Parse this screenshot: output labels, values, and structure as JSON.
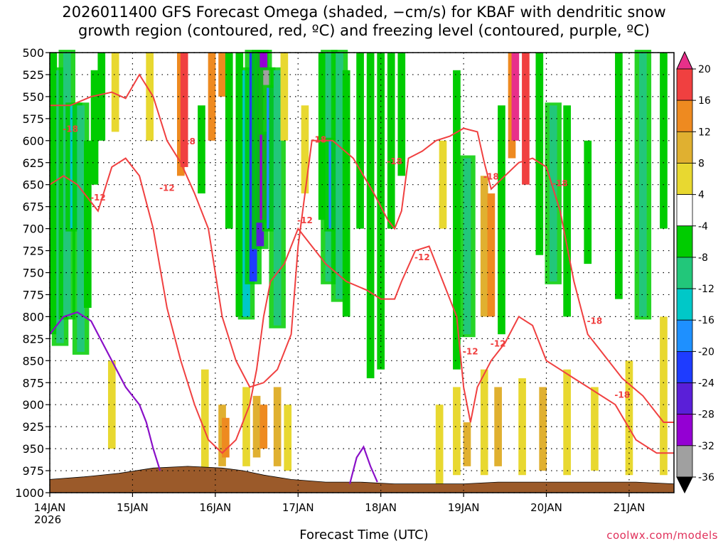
{
  "title": {
    "line1": "2026011400 GFS Forecast Omega (shaded, −cm/s) for KBAF with dendritic snow",
    "line2": "growth region (contoured, red, ºC) and freezing level (contoured, purple, ºC)"
  },
  "footer": {
    "xlabel": "Forecast Time (UTC)",
    "credit": "coolwx.com/models",
    "year": "2026"
  },
  "chart_data": {
    "type": "heatmap",
    "title": "2026011400 GFS Forecast Omega for KBAF",
    "xlabel": "Forecast Time (UTC)",
    "ylabel": "Pressure (hPa)",
    "xlim_hours": [
      0,
      181
    ],
    "ylim": [
      1000,
      500
    ],
    "y_ticks": [
      500,
      525,
      550,
      575,
      600,
      625,
      650,
      675,
      700,
      725,
      750,
      775,
      800,
      825,
      850,
      875,
      900,
      925,
      950,
      975,
      1000
    ],
    "x_ticks": [
      {
        "label": "14JAN",
        "hour": 0
      },
      {
        "label": "15JAN",
        "hour": 24
      },
      {
        "label": "16JAN",
        "hour": 48
      },
      {
        "label": "17JAN",
        "hour": 72
      },
      {
        "label": "18JAN",
        "hour": 96
      },
      {
        "label": "19JAN",
        "hour": 120
      },
      {
        "label": "20JAN",
        "hour": 144
      },
      {
        "label": "21JAN",
        "hour": 168
      }
    ],
    "colorbar": {
      "levels": [
        -36,
        -32,
        -28,
        -24,
        -20,
        -16,
        -12,
        -8,
        -4,
        4,
        8,
        12,
        16,
        20
      ],
      "labels": [
        "20",
        "16",
        "12",
        "8",
        "4",
        "-4",
        "-8",
        "-12",
        "-16",
        "-20",
        "-24",
        "-28",
        "-32",
        "-36"
      ],
      "colors": [
        "#000000",
        "#a0a0a0",
        "#9400d3",
        "#5a1fd8",
        "#1e3cff",
        "#1e90ff",
        "#00c8c8",
        "#22c77a",
        "#00cc00",
        "#ffffff",
        "#e8d830",
        "#e0b030",
        "#ee8a20",
        "#f04040",
        "#e8308a"
      ]
    },
    "omega_columns": [
      {
        "hour": 1,
        "top": 500,
        "bottom": 820,
        "value": -8
      },
      {
        "hour": 3,
        "top": 520,
        "bottom": 830,
        "value": -12
      },
      {
        "hour": 5,
        "top": 500,
        "bottom": 800,
        "value": -12
      },
      {
        "hour": 7,
        "top": 560,
        "bottom": 700,
        "value": -16
      },
      {
        "hour": 9,
        "top": 560,
        "bottom": 840,
        "value": -12
      },
      {
        "hour": 11,
        "top": 600,
        "bottom": 790,
        "value": -8
      },
      {
        "hour": 13,
        "top": 520,
        "bottom": 650,
        "value": -8
      },
      {
        "hour": 15,
        "top": 500,
        "bottom": 600,
        "value": -8
      },
      {
        "hour": 19,
        "top": 500,
        "bottom": 590,
        "value": 4
      },
      {
        "hour": 29,
        "top": 500,
        "bottom": 600,
        "value": 4
      },
      {
        "hour": 38,
        "top": 500,
        "bottom": 640,
        "value": 12
      },
      {
        "hour": 39,
        "top": 500,
        "bottom": 630,
        "value": 16
      },
      {
        "hour": 44,
        "top": 560,
        "bottom": 660,
        "value": -8
      },
      {
        "hour": 47,
        "top": 500,
        "bottom": 600,
        "value": 12
      },
      {
        "hour": 50,
        "top": 500,
        "bottom": 550,
        "value": 12
      },
      {
        "hour": 52,
        "top": 500,
        "bottom": 700,
        "value": -8
      },
      {
        "hour": 55,
        "top": 500,
        "bottom": 800,
        "value": -8
      },
      {
        "hour": 57,
        "top": 520,
        "bottom": 800,
        "value": -16
      },
      {
        "hour": 59,
        "top": 500,
        "bottom": 760,
        "value": -24
      },
      {
        "hour": 61,
        "top": 500,
        "bottom": 720,
        "value": -28
      },
      {
        "hour": 62,
        "top": 500,
        "bottom": 690,
        "value": -32
      },
      {
        "hour": 63,
        "top": 520,
        "bottom": 590,
        "value": -36
      },
      {
        "hour": 64,
        "top": 540,
        "bottom": 700,
        "value": -20
      },
      {
        "hour": 66,
        "top": 520,
        "bottom": 810,
        "value": -12
      },
      {
        "hour": 68,
        "top": 500,
        "bottom": 600,
        "value": 4
      },
      {
        "hour": 74,
        "top": 560,
        "bottom": 660,
        "value": 4
      },
      {
        "hour": 79,
        "top": 500,
        "bottom": 690,
        "value": -8
      },
      {
        "hour": 81,
        "top": 500,
        "bottom": 760,
        "value": -12
      },
      {
        "hour": 82,
        "top": 600,
        "bottom": 700,
        "value": -20
      },
      {
        "hour": 84,
        "top": 500,
        "bottom": 780,
        "value": -12
      },
      {
        "hour": 86,
        "top": 520,
        "bottom": 800,
        "value": -8
      },
      {
        "hour": 90,
        "top": 500,
        "bottom": 700,
        "value": -8
      },
      {
        "hour": 93,
        "top": 500,
        "bottom": 870,
        "value": -8
      },
      {
        "hour": 96,
        "top": 500,
        "bottom": 860,
        "value": -8
      },
      {
        "hour": 99,
        "top": 500,
        "bottom": 700,
        "value": -8
      },
      {
        "hour": 102,
        "top": 500,
        "bottom": 640,
        "value": -8
      },
      {
        "hour": 105,
        "top": 500,
        "bottom": 600,
        "value": -4
      },
      {
        "hour": 114,
        "top": 600,
        "bottom": 700,
        "value": 4
      },
      {
        "hour": 118,
        "top": 520,
        "bottom": 860,
        "value": -8
      },
      {
        "hour": 121,
        "top": 620,
        "bottom": 820,
        "value": -12
      },
      {
        "hour": 126,
        "top": 640,
        "bottom": 800,
        "value": 8
      },
      {
        "hour": 128,
        "top": 660,
        "bottom": 800,
        "value": 12
      },
      {
        "hour": 131,
        "top": 560,
        "bottom": 820,
        "value": -8
      },
      {
        "hour": 134,
        "top": 500,
        "bottom": 620,
        "value": 12
      },
      {
        "hour": 135,
        "top": 500,
        "bottom": 600,
        "value": 20
      },
      {
        "hour": 138,
        "top": 500,
        "bottom": 650,
        "value": 16
      },
      {
        "hour": 142,
        "top": 500,
        "bottom": 730,
        "value": -8
      },
      {
        "hour": 146,
        "top": 560,
        "bottom": 760,
        "value": -12
      },
      {
        "hour": 150,
        "top": 560,
        "bottom": 800,
        "value": -8
      },
      {
        "hour": 156,
        "top": 600,
        "bottom": 740,
        "value": -8
      },
      {
        "hour": 165,
        "top": 500,
        "bottom": 780,
        "value": -8
      },
      {
        "hour": 172,
        "top": 500,
        "bottom": 800,
        "value": -12
      },
      {
        "hour": 178,
        "top": 500,
        "bottom": 700,
        "value": -8
      }
    ],
    "positive_low_level": [
      {
        "hour": 18,
        "top": 850,
        "bottom": 950,
        "value": 4
      },
      {
        "hour": 45,
        "top": 860,
        "bottom": 975,
        "value": 4
      },
      {
        "hour": 50,
        "top": 900,
        "bottom": 970,
        "value": 8
      },
      {
        "hour": 51,
        "top": 915,
        "bottom": 960,
        "value": 12
      },
      {
        "hour": 57,
        "top": 880,
        "bottom": 970,
        "value": 4
      },
      {
        "hour": 60,
        "top": 890,
        "bottom": 960,
        "value": 8
      },
      {
        "hour": 62,
        "top": 900,
        "bottom": 950,
        "value": 12
      },
      {
        "hour": 66,
        "top": 880,
        "bottom": 970,
        "value": 8
      },
      {
        "hour": 69,
        "top": 900,
        "bottom": 975,
        "value": 4
      },
      {
        "hour": 113,
        "top": 900,
        "bottom": 990,
        "value": 4
      },
      {
        "hour": 118,
        "top": 880,
        "bottom": 980,
        "value": 4
      },
      {
        "hour": 121,
        "top": 920,
        "bottom": 970,
        "value": 8
      },
      {
        "hour": 126,
        "top": 860,
        "bottom": 980,
        "value": 4
      },
      {
        "hour": 130,
        "top": 880,
        "bottom": 970,
        "value": 8
      },
      {
        "hour": 137,
        "top": 870,
        "bottom": 980,
        "value": 4
      },
      {
        "hour": 143,
        "top": 880,
        "bottom": 975,
        "value": 8
      },
      {
        "hour": 150,
        "top": 860,
        "bottom": 980,
        "value": 4
      },
      {
        "hour": 158,
        "top": 880,
        "bottom": 975,
        "value": 4
      },
      {
        "hour": 168,
        "top": 850,
        "bottom": 980,
        "value": 4
      },
      {
        "hour": 178,
        "top": 800,
        "bottom": 980,
        "value": 4
      }
    ],
    "dgz_contours": {
      "minus12_label": "-12",
      "minus18_label": "-18",
      "upper_line": [
        [
          0,
          560
        ],
        [
          6,
          560
        ],
        [
          12,
          550
        ],
        [
          18,
          545
        ],
        [
          22,
          552
        ],
        [
          26,
          525
        ],
        [
          30,
          550
        ],
        [
          34,
          600
        ],
        [
          38,
          625
        ],
        [
          42,
          660
        ],
        [
          46,
          700
        ],
        [
          50,
          800
        ],
        [
          54,
          850
        ],
        [
          58,
          880
        ],
        [
          62,
          875
        ],
        [
          66,
          860
        ],
        [
          70,
          820
        ],
        [
          72,
          720
        ],
        [
          76,
          600
        ],
        [
          82,
          600
        ],
        [
          88,
          620
        ],
        [
          94,
          660
        ],
        [
          98,
          690
        ],
        [
          100,
          700
        ],
        [
          102,
          680
        ],
        [
          104,
          620
        ],
        [
          108,
          612
        ],
        [
          112,
          600
        ],
        [
          116,
          595
        ],
        [
          120,
          586
        ],
        [
          124,
          590
        ],
        [
          126,
          625
        ],
        [
          128,
          655
        ],
        [
          132,
          640
        ],
        [
          136,
          625
        ],
        [
          140,
          620
        ],
        [
          144,
          630
        ],
        [
          148,
          680
        ],
        [
          150,
          720
        ],
        [
          152,
          760
        ],
        [
          156,
          820
        ],
        [
          160,
          840
        ],
        [
          166,
          870
        ],
        [
          172,
          890
        ],
        [
          178,
          920
        ],
        [
          181,
          920
        ]
      ],
      "lower_line": [
        [
          0,
          650
        ],
        [
          4,
          640
        ],
        [
          8,
          650
        ],
        [
          14,
          680
        ],
        [
          18,
          630
        ],
        [
          22,
          620
        ],
        [
          26,
          640
        ],
        [
          30,
          700
        ],
        [
          34,
          790
        ],
        [
          38,
          850
        ],
        [
          42,
          900
        ],
        [
          46,
          940
        ],
        [
          50,
          955
        ],
        [
          54,
          940
        ],
        [
          58,
          900
        ],
        [
          60,
          860
        ],
        [
          62,
          800
        ],
        [
          64,
          760
        ],
        [
          68,
          740
        ],
        [
          72,
          700
        ],
        [
          76,
          720
        ],
        [
          80,
          740
        ],
        [
          86,
          760
        ],
        [
          92,
          770
        ],
        [
          96,
          780
        ],
        [
          100,
          780
        ],
        [
          102,
          760
        ],
        [
          106,
          725
        ],
        [
          110,
          720
        ],
        [
          114,
          760
        ],
        [
          118,
          800
        ],
        [
          120,
          880
        ],
        [
          122,
          920
        ],
        [
          124,
          880
        ],
        [
          128,
          850
        ],
        [
          132,
          830
        ],
        [
          136,
          800
        ],
        [
          140,
          810
        ],
        [
          144,
          850
        ],
        [
          148,
          860
        ],
        [
          152,
          870
        ],
        [
          156,
          880
        ],
        [
          164,
          900
        ],
        [
          170,
          940
        ],
        [
          176,
          955
        ],
        [
          181,
          955
        ]
      ]
    },
    "freezing_level_line": [
      [
        0,
        820
      ],
      [
        4,
        800
      ],
      [
        8,
        795
      ],
      [
        12,
        805
      ],
      [
        14,
        820
      ],
      [
        18,
        850
      ],
      [
        22,
        880
      ],
      [
        26,
        900
      ],
      [
        28,
        920
      ],
      [
        30,
        950
      ],
      [
        32,
        975
      ]
    ],
    "freezing_level_second": [
      [
        87,
        990
      ],
      [
        89,
        960
      ],
      [
        91,
        948
      ],
      [
        93,
        970
      ],
      [
        95,
        988
      ]
    ],
    "terrain_pressure": [
      [
        0,
        985
      ],
      [
        10,
        982
      ],
      [
        20,
        978
      ],
      [
        30,
        972
      ],
      [
        40,
        970
      ],
      [
        50,
        972
      ],
      [
        56,
        975
      ],
      [
        62,
        980
      ],
      [
        70,
        985
      ],
      [
        80,
        988
      ],
      [
        90,
        988
      ],
      [
        100,
        990
      ],
      [
        110,
        990
      ],
      [
        120,
        990
      ],
      [
        130,
        988
      ],
      [
        140,
        988
      ],
      [
        150,
        988
      ],
      [
        160,
        988
      ],
      [
        170,
        988
      ],
      [
        181,
        990
      ]
    ]
  }
}
